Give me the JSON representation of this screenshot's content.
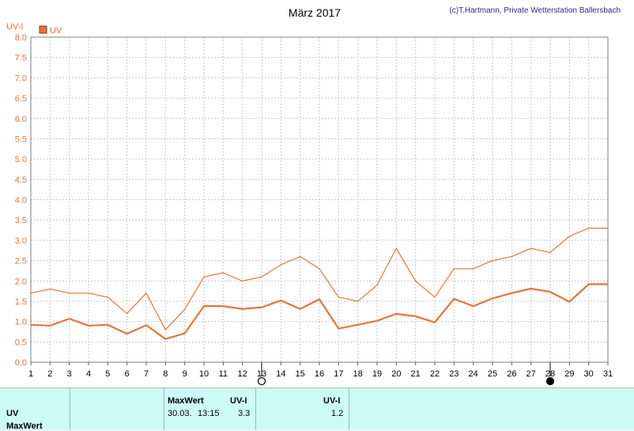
{
  "header": {
    "title": "März 2017",
    "copyright": "(c)T.Hartmann, Private Wetterstation Ballersbach"
  },
  "colors": {
    "series": "#e8733a",
    "axis_text": "#e8733a",
    "footer_bg": "#ccfbf6"
  },
  "chart_data": {
    "type": "line",
    "ylabel": "UV-I",
    "ylim": [
      0,
      8
    ],
    "yticks": [
      "0.0",
      "0.5",
      "1.0",
      "1.5",
      "2.0",
      "2.5",
      "3.0",
      "3.5",
      "4.0",
      "4.5",
      "5.0",
      "5.5",
      "6.0",
      "6.5",
      "7.0",
      "7.5",
      "8.0"
    ],
    "x": [
      1,
      2,
      3,
      4,
      5,
      6,
      7,
      8,
      9,
      10,
      11,
      12,
      13,
      14,
      15,
      16,
      17,
      18,
      19,
      20,
      21,
      22,
      23,
      24,
      25,
      26,
      27,
      28,
      29,
      30,
      31
    ],
    "legend": "UV",
    "grid": true,
    "moon_markers": [
      {
        "day": 13,
        "phase": "full-moon"
      },
      {
        "day": 28,
        "phase": "new-moon"
      }
    ],
    "series": [
      {
        "name": "UV",
        "style": "max",
        "values": [
          1.7,
          1.8,
          1.7,
          1.7,
          1.6,
          1.2,
          1.7,
          0.8,
          1.3,
          2.1,
          2.2,
          2.0,
          2.1,
          2.4,
          2.6,
          2.3,
          1.6,
          1.5,
          1.9,
          2.8,
          2.0,
          1.6,
          2.3,
          2.3,
          2.5,
          2.6,
          2.8,
          2.7,
          3.1,
          3.3,
          3.3
        ]
      },
      {
        "name": "UV",
        "style": "mean",
        "values": [
          0.92,
          0.9,
          1.07,
          0.9,
          0.92,
          0.7,
          0.91,
          0.57,
          0.71,
          1.38,
          1.38,
          1.31,
          1.35,
          1.52,
          1.31,
          1.55,
          0.83,
          0.92,
          1.02,
          1.19,
          1.13,
          0.98,
          1.56,
          1.38,
          1.57,
          1.7,
          1.81,
          1.73,
          1.49,
          1.92,
          1.92
        ]
      }
    ]
  },
  "footer": {
    "row_labels": [
      "UV",
      "MaxWert"
    ],
    "col1": {
      "header": "MaxWert",
      "date": "30.03.",
      "time": "13:15"
    },
    "col2": {
      "header": "UV-I",
      "value": "3.3"
    },
    "col3": {
      "header": "UV-I",
      "value": "1.2"
    }
  }
}
